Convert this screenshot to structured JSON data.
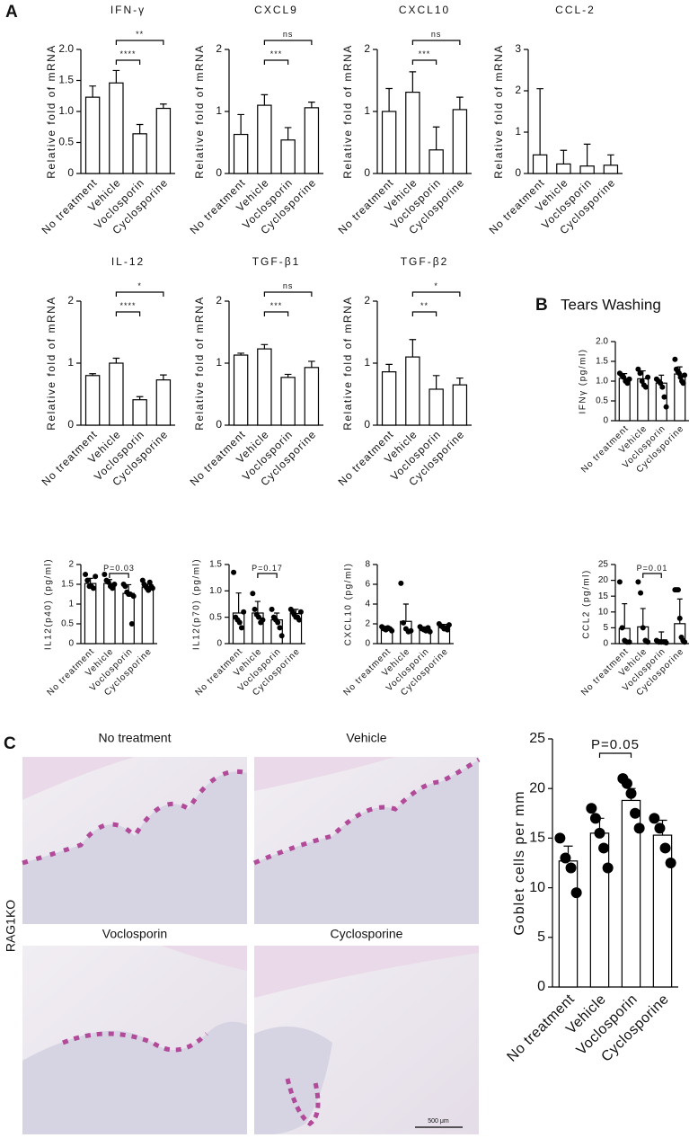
{
  "panel_labels": {
    "a": "A",
    "b": "B",
    "c": "C"
  },
  "panel_b_title": "Tears Washing",
  "strain_label": "RAG1KO",
  "micrographs": [
    {
      "label": "No treatment"
    },
    {
      "label": "Vehicle"
    },
    {
      "label": "Voclosporin"
    },
    {
      "label": "Cyclosporine"
    }
  ],
  "scale_bar": "500 μm",
  "chart_data": [
    {
      "type": "bar",
      "title": "IFN-γ",
      "y_label": "Relative fold of mRNA",
      "categories": [
        "No treatment",
        "Vehicle",
        "Voclosporin",
        "Cyclosporine"
      ],
      "values": [
        1.23,
        1.46,
        0.64,
        1.05
      ],
      "errors": [
        0.18,
        0.2,
        0.15,
        0.07
      ],
      "ylim": [
        0,
        2
      ],
      "yticks": [
        0,
        0.5,
        {
          "value": 1,
          "label": "1.0"
        },
        1.5,
        {
          "value": 2,
          "label": "2.0"
        }
      ],
      "significance": [
        {
          "groups": [
            "Vehicle",
            "Voclosporin"
          ],
          "label": "****"
        },
        {
          "groups": [
            "Vehicle",
            "Cyclosporine"
          ],
          "label": "**"
        }
      ]
    },
    {
      "type": "bar",
      "title": "CXCL9",
      "y_label": "Relative fold of mRNA",
      "categories": [
        "No treatment",
        "Vehicle",
        "Voclosporin",
        "Cyclosporine"
      ],
      "values": [
        0.63,
        1.1,
        0.54,
        1.06
      ],
      "errors": [
        0.32,
        0.17,
        0.2,
        0.09
      ],
      "ylim": [
        0,
        2
      ],
      "yticks": [
        0,
        1,
        2
      ],
      "significance": [
        {
          "groups": [
            "Vehicle",
            "Voclosporin"
          ],
          "label": "***"
        },
        {
          "groups": [
            "Vehicle",
            "Cyclosporine"
          ],
          "label": "ns"
        }
      ]
    },
    {
      "type": "bar",
      "title": "CXCL10",
      "y_label": "Relative fold of mRNA",
      "categories": [
        "No treatment",
        "Vehicle",
        "Voclosporin",
        "Cyclosporine"
      ],
      "values": [
        1.0,
        1.31,
        0.38,
        1.03
      ],
      "errors": [
        0.37,
        0.33,
        0.37,
        0.2
      ],
      "ylim": [
        0,
        2
      ],
      "yticks": [
        0,
        1,
        2
      ],
      "significance": [
        {
          "groups": [
            "Vehicle",
            "Voclosporin"
          ],
          "label": "***"
        },
        {
          "groups": [
            "Vehicle",
            "Cyclosporine"
          ],
          "label": "ns"
        }
      ]
    },
    {
      "type": "bar",
      "title": "CCL-2",
      "y_label": "Relative fold of mRNA",
      "categories": [
        "No treatment",
        "Vehicle",
        "Voclosporin",
        "Cyclosporine"
      ],
      "values": [
        0.45,
        0.23,
        0.18,
        0.2
      ],
      "errors": [
        1.6,
        0.33,
        0.53,
        0.25
      ],
      "ylim": [
        0,
        3
      ],
      "yticks": [
        0,
        1,
        2,
        3
      ],
      "significance": []
    },
    {
      "type": "bar",
      "title": "IL-12",
      "y_label": "Relative fold of mRNA",
      "categories": [
        "No treatment",
        "Vehicle",
        "Voclosporin",
        "Cyclosporine"
      ],
      "values": [
        0.8,
        1.0,
        0.41,
        0.73
      ],
      "errors": [
        0.03,
        0.08,
        0.05,
        0.08
      ],
      "ylim": [
        0,
        2
      ],
      "yticks": [
        0,
        1,
        2
      ],
      "significance": [
        {
          "groups": [
            "Vehicle",
            "Voclosporin"
          ],
          "label": "****"
        },
        {
          "groups": [
            "Vehicle",
            "Cyclosporine"
          ],
          "label": "*"
        }
      ]
    },
    {
      "type": "bar",
      "title": "TGF-β1",
      "y_label": "Relative fold of mRNA",
      "categories": [
        "No treatment",
        "Vehicle",
        "Voclosporin",
        "Cyclosporine"
      ],
      "values": [
        1.13,
        1.23,
        0.77,
        0.93
      ],
      "errors": [
        0.03,
        0.07,
        0.05,
        0.1
      ],
      "ylim": [
        0,
        2
      ],
      "yticks": [
        0,
        1,
        2
      ],
      "significance": [
        {
          "groups": [
            "Vehicle",
            "Voclosporin"
          ],
          "label": "***"
        },
        {
          "groups": [
            "Vehicle",
            "Cyclosporine"
          ],
          "label": "ns"
        }
      ]
    },
    {
      "type": "bar",
      "title": "TGF-β2",
      "y_label": "Relative fold of mRNA",
      "categories": [
        "No treatment",
        "Vehicle",
        "Voclosporin",
        "Cyclosporine"
      ],
      "values": [
        0.86,
        1.1,
        0.58,
        0.65
      ],
      "errors": [
        0.12,
        0.28,
        0.22,
        0.11
      ],
      "ylim": [
        0,
        2
      ],
      "yticks": [
        0,
        1,
        2
      ],
      "significance": [
        {
          "groups": [
            "Vehicle",
            "Voclosporin"
          ],
          "label": "**"
        },
        {
          "groups": [
            "Vehicle",
            "Cyclosporine"
          ],
          "label": "*"
        }
      ]
    },
    {
      "type": "bar",
      "y_label": "IFNγ (pg/ml)",
      "categories": [
        "No treatment",
        "Vehicle",
        "Voclosporin",
        "Cyclosporine"
      ],
      "values": [
        1.07,
        1.06,
        0.95,
        1.18
      ],
      "errors": [
        0.12,
        0.2,
        0.2,
        0.18
      ],
      "points": [
        [
          1.2,
          1.15,
          1.1,
          1.0,
          0.95,
          1.05
        ],
        [
          1.3,
          1.2,
          1.0,
          0.9,
          0.85,
          1.1
        ],
        [
          1.05,
          1.0,
          0.95,
          0.85,
          0.6,
          0.35
        ],
        [
          1.55,
          1.3,
          1.25,
          1.2,
          1.1,
          1.0,
          0.95,
          1.15
        ]
      ],
      "ylim": [
        0,
        2
      ],
      "yticks": [
        0,
        0.5,
        {
          "value": 1,
          "label": "1.0"
        },
        1.5,
        {
          "value": 2,
          "label": "2.0"
        }
      ],
      "significance": []
    },
    {
      "type": "bar",
      "y_label": "IL12(p40) (pg/ml)",
      "categories": [
        "No treatment",
        "Vehicle",
        "Voclosporin",
        "Cyclosporine"
      ],
      "values": [
        1.52,
        1.52,
        1.27,
        1.43
      ],
      "errors": [
        0.13,
        0.1,
        0.22,
        0.07
      ],
      "points": [
        [
          1.75,
          1.6,
          1.45,
          1.45,
          1.4,
          1.7
        ],
        [
          1.75,
          1.6,
          1.55,
          1.45,
          1.4,
          1.5
        ],
        [
          1.5,
          1.45,
          1.3,
          1.25,
          1.25,
          0.5,
          1.2
        ],
        [
          1.6,
          1.5,
          1.45,
          1.4,
          1.35,
          1.55,
          1.45,
          1.4
        ]
      ],
      "ylim": [
        0,
        2
      ],
      "yticks": [
        0,
        0.5,
        1,
        1.5,
        2
      ],
      "significance": [
        {
          "groups": [
            "Vehicle",
            "Voclosporin"
          ],
          "label": "P=0.03"
        }
      ]
    },
    {
      "type": "bar",
      "y_label": "IL12(p70) (pg/ml)",
      "categories": [
        "No treatment",
        "Vehicle",
        "Voclosporin",
        "Cyclosporine"
      ],
      "values": [
        0.58,
        0.58,
        0.45,
        0.57
      ],
      "errors": [
        0.38,
        0.22,
        0.13,
        0.08
      ],
      "points": [
        [
          1.35,
          0.5,
          0.45,
          0.4,
          0.3,
          0.6
        ],
        [
          0.95,
          0.65,
          0.55,
          0.5,
          0.4,
          0.45
        ],
        [
          0.65,
          0.5,
          0.45,
          0.4,
          0.3,
          0.15
        ],
        [
          0.65,
          0.6,
          0.55,
          0.5,
          0.5,
          0.45,
          0.6
        ]
      ],
      "ylim": [
        0,
        1.5
      ],
      "yticks": [
        0,
        0.5,
        {
          "value": 1,
          "label": "1.0"
        },
        1.5
      ],
      "significance": [
        {
          "groups": [
            "Vehicle",
            "Voclosporin"
          ],
          "label": "P=0.17"
        }
      ]
    },
    {
      "type": "bar",
      "y_label": "CXCL10 (pg/ml)",
      "categories": [
        "No treatment",
        "Vehicle",
        "Voclosporin",
        "Cyclosporine"
      ],
      "values": [
        1.55,
        2.25,
        1.45,
        1.65
      ],
      "errors": [
        0.2,
        1.75,
        0.25,
        0.3
      ],
      "points": [
        [
          1.7,
          1.5,
          1.4,
          1.6,
          1.5,
          1.3
        ],
        [
          6.1,
          2.1,
          1.5,
          1.2,
          1.3
        ],
        [
          1.7,
          1.5,
          1.4,
          1.3,
          1.6,
          1.2
        ],
        [
          2.0,
          1.8,
          1.7,
          1.5,
          1.6,
          1.4,
          1.9
        ]
      ],
      "ylim": [
        0,
        8
      ],
      "yticks": [
        0,
        2,
        4,
        6,
        8
      ],
      "significance": []
    },
    {
      "type": "bar",
      "y_label": "CCL2 (pg/ml)",
      "categories": [
        "No treatment",
        "Vehicle",
        "Voclosporin",
        "Cyclosporine"
      ],
      "values": [
        4.8,
        5.3,
        1.2,
        6.3
      ],
      "errors": [
        7.8,
        5.8,
        2.5,
        7.8
      ],
      "points": [
        [
          19.5,
          5,
          1,
          0.5,
          0.5
        ],
        [
          19.5,
          16,
          5,
          1,
          0.5
        ],
        [
          1,
          0.5,
          0.5,
          0.5,
          0.3
        ],
        [
          17,
          17,
          17,
          8,
          2,
          1,
          0.5
        ]
      ],
      "ylim": [
        0,
        25
      ],
      "yticks": [
        0,
        5,
        10,
        15,
        20,
        25
      ],
      "significance": [
        {
          "groups": [
            "Vehicle",
            "Voclosporin"
          ],
          "label": "P=0.01"
        }
      ]
    },
    {
      "type": "bar",
      "y_label": "Goblet cells per mm",
      "categories": [
        "No treatment",
        "Vehicle",
        "Voclosporin",
        "Cyclosporine"
      ],
      "values": [
        12.7,
        15.5,
        18.8,
        15.3
      ],
      "errors": [
        1.5,
        1.5,
        1.2,
        1.5
      ],
      "points": [
        [
          15,
          13,
          12,
          9.5
        ],
        [
          18,
          17,
          15.5,
          14,
          12
        ],
        [
          21,
          20.5,
          19.5,
          17.5,
          16
        ],
        [
          17,
          16,
          14,
          12.5
        ]
      ],
      "ylim": [
        0,
        25
      ],
      "yticks": [
        0,
        5,
        10,
        15,
        20,
        25
      ],
      "significance": [
        {
          "groups": [
            "Vehicle",
            "Voclosporin"
          ],
          "label": "P=0.05"
        }
      ]
    }
  ]
}
